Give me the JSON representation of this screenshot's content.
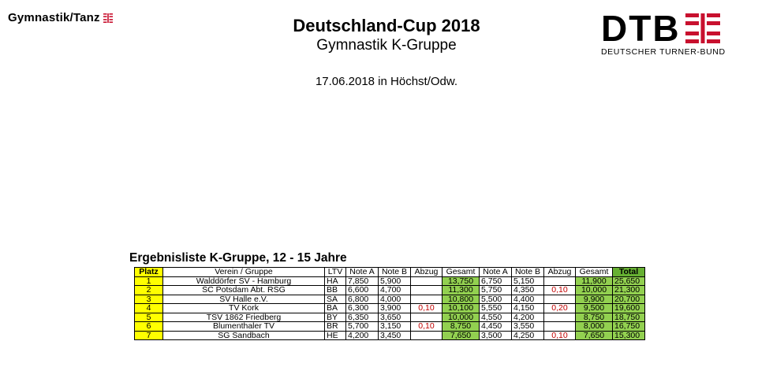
{
  "header": {
    "brand_left": "Gymnastik/Tanz",
    "title": "Deutschland-Cup 2018",
    "subtitle": "Gymnastik K-Gruppe",
    "date": "17.06.2018 in Höchst/Odw.",
    "logo_letters": "DTB",
    "logo_subtitle": "DEUTSCHER TURNER-BUND",
    "logo_color": "#c8102e"
  },
  "section_title": "Ergebnisliste K-Gruppe, 12 - 15 Jahre",
  "table": {
    "columns": [
      "Platz",
      "Verein / Gruppe",
      "LTV",
      "Note A",
      "Note B",
      "Abzug",
      "Gesamt",
      "Note A",
      "Note B",
      "Abzug",
      "Gesamt",
      "Total"
    ],
    "rows": [
      {
        "platz": "1",
        "verein": "Walddörfer SV - Hamburg",
        "ltv": "HA",
        "a1": "7,850",
        "b1": "5,900",
        "abz1": "",
        "g1": "13,750",
        "a2": "6,750",
        "b2": "5,150",
        "abz2": "",
        "g2": "11,900",
        "total": "25,650"
      },
      {
        "platz": "2",
        "verein": "SC Potsdam Abt. RSG",
        "ltv": "BB",
        "a1": "6,600",
        "b1": "4,700",
        "abz1": "",
        "g1": "11,300",
        "a2": "5,750",
        "b2": "4,350",
        "abz2": "0,10",
        "g2": "10,000",
        "total": "21,300"
      },
      {
        "platz": "3",
        "verein": "SV Halle e.V.",
        "ltv": "SA",
        "a1": "6,800",
        "b1": "4,000",
        "abz1": "",
        "g1": "10,800",
        "a2": "5,500",
        "b2": "4,400",
        "abz2": "",
        "g2": "9,900",
        "total": "20,700"
      },
      {
        "platz": "4",
        "verein": "TV Kork",
        "ltv": "BA",
        "a1": "6,300",
        "b1": "3,900",
        "abz1": "0,10",
        "g1": "10,100",
        "a2": "5,550",
        "b2": "4,150",
        "abz2": "0,20",
        "g2": "9,500",
        "total": "19,600"
      },
      {
        "platz": "5",
        "verein": "TSV 1862 Friedberg",
        "ltv": "BY",
        "a1": "6,350",
        "b1": "3,650",
        "abz1": "",
        "g1": "10,000",
        "a2": "4,550",
        "b2": "4,200",
        "abz2": "",
        "g2": "8,750",
        "total": "18,750"
      },
      {
        "platz": "6",
        "verein": "Blumenthaler TV",
        "ltv": "BR",
        "a1": "5,700",
        "b1": "3,150",
        "abz1": "0,10",
        "g1": "8,750",
        "a2": "4,450",
        "b2": "3,550",
        "abz2": "",
        "g2": "8,000",
        "total": "16,750"
      },
      {
        "platz": "7",
        "verein": "SG Sandbach",
        "ltv": "HE",
        "a1": "4,200",
        "b1": "3,450",
        "abz1": "",
        "g1": "7,650",
        "a2": "3,500",
        "b2": "4,250",
        "abz2": "0,10",
        "g2": "7,650",
        "total": "15,300"
      }
    ]
  }
}
